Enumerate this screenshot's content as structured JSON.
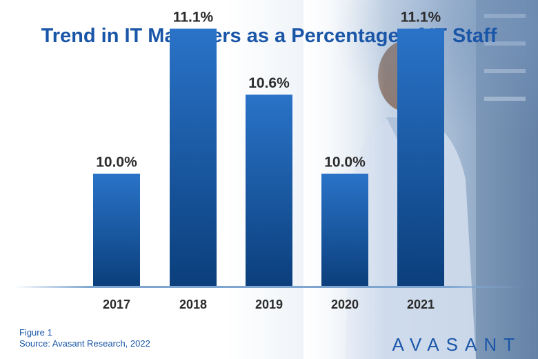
{
  "title": "Trend in IT Managers as a Percentage of IT Staff",
  "figure_label": "Figure 1",
  "source": "Source: Avasant Research, 2022",
  "brand": "AVASANT",
  "colors": {
    "title": "#1a56a8",
    "bar_top": "#2a73c8",
    "bar_bottom": "#0b3f7c",
    "baseline": "#7fa6d0"
  },
  "chart_data": {
    "type": "bar",
    "title": "Trend in IT Managers as a Percentage of IT Staff",
    "categories": [
      "2017",
      "2018",
      "2019",
      "2020",
      "2021"
    ],
    "values": [
      10.0,
      11.1,
      10.6,
      10.0,
      11.1
    ],
    "value_labels": [
      "10.0%",
      "11.1%",
      "10.6%",
      "10.0%",
      "11.1%"
    ],
    "xlabel": "",
    "ylabel": "",
    "grid": false,
    "legend": "none"
  }
}
